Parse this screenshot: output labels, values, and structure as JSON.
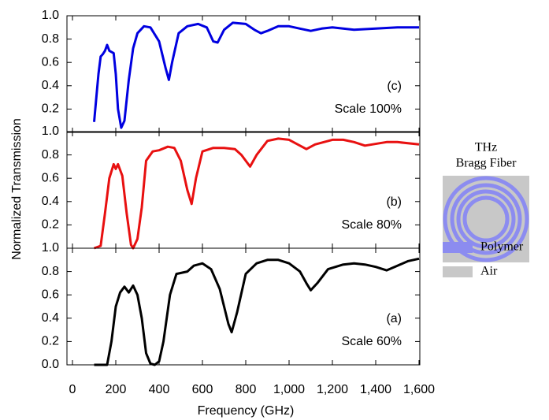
{
  "chart_data": {
    "type": "line",
    "xlabel": "Frequency (GHz)",
    "ylabel": "Normalized Transmission",
    "xlim": [
      0,
      1600
    ],
    "xticks": [
      0,
      200,
      400,
      600,
      800,
      {
        "value": 1000,
        "label": "1,000"
      },
      {
        "value": 1200,
        "label": "1,200"
      },
      {
        "value": 1400,
        "label": "1,400"
      },
      {
        "value": 1600,
        "label": "1,600"
      }
    ],
    "panels": [
      {
        "label": "(c)",
        "annotation": "Scale 100%",
        "color": "#0000e0",
        "ylim": [
          0,
          1
        ],
        "yticks": [
          {
            "value": 0.2,
            "label": "0.2"
          },
          {
            "value": 0.4,
            "label": "0.4"
          },
          {
            "value": 0.6,
            "label": "0.6"
          },
          {
            "value": 0.8,
            "label": "0.8"
          },
          {
            "value": 1,
            "label": "1.0"
          }
        ],
        "x": [
          100,
          110,
          120,
          130,
          140,
          150,
          160,
          170,
          180,
          190,
          200,
          210,
          225,
          240,
          260,
          280,
          300,
          330,
          360,
          400,
          430,
          445,
          460,
          490,
          530,
          580,
          620,
          650,
          670,
          700,
          740,
          800,
          840,
          870,
          900,
          950,
          1000,
          1050,
          1100,
          1150,
          1200,
          1300,
          1400,
          1500,
          1600
        ],
        "values": [
          0.09,
          0.3,
          0.5,
          0.65,
          0.67,
          0.7,
          0.75,
          0.7,
          0.69,
          0.68,
          0.5,
          0.2,
          0.04,
          0.1,
          0.45,
          0.72,
          0.85,
          0.91,
          0.9,
          0.78,
          0.55,
          0.45,
          0.6,
          0.85,
          0.91,
          0.93,
          0.9,
          0.78,
          0.77,
          0.88,
          0.94,
          0.93,
          0.88,
          0.85,
          0.87,
          0.91,
          0.91,
          0.89,
          0.87,
          0.89,
          0.9,
          0.88,
          0.89,
          0.9,
          0.9
        ]
      },
      {
        "label": "(b)",
        "annotation": "Scale 80%",
        "color": "#e81010",
        "ylim": [
          0,
          1
        ],
        "yticks": [
          {
            "value": 0.2,
            "label": "0.2"
          },
          {
            "value": 0.4,
            "label": "0.4"
          },
          {
            "value": 0.6,
            "label": "0.6"
          },
          {
            "value": 0.8,
            "label": "0.8"
          },
          {
            "value": 1,
            "label": "1.0"
          }
        ],
        "x": [
          100,
          130,
          150,
          170,
          190,
          200,
          210,
          230,
          250,
          270,
          280,
          300,
          320,
          340,
          370,
          400,
          440,
          470,
          500,
          530,
          550,
          570,
          600,
          650,
          700,
          750,
          780,
          820,
          850,
          900,
          950,
          1000,
          1050,
          1080,
          1120,
          1200,
          1250,
          1300,
          1350,
          1450,
          1500,
          1600
        ],
        "values": [
          0.0,
          0.02,
          0.3,
          0.6,
          0.72,
          0.68,
          0.72,
          0.62,
          0.3,
          0.03,
          0.0,
          0.08,
          0.35,
          0.75,
          0.83,
          0.84,
          0.87,
          0.86,
          0.75,
          0.5,
          0.38,
          0.6,
          0.83,
          0.86,
          0.86,
          0.85,
          0.8,
          0.7,
          0.8,
          0.92,
          0.94,
          0.93,
          0.88,
          0.85,
          0.89,
          0.93,
          0.93,
          0.91,
          0.88,
          0.91,
          0.91,
          0.89
        ]
      },
      {
        "label": "(a)",
        "annotation": "Scale 60%",
        "color": "#000000",
        "ylim": [
          0,
          1
        ],
        "yticks": [
          {
            "value": 0,
            "label": "0.0"
          },
          {
            "value": 0.2,
            "label": "0.2"
          },
          {
            "value": 0.4,
            "label": "0.4"
          },
          {
            "value": 0.6,
            "label": "0.6"
          },
          {
            "value": 0.8,
            "label": "0.8"
          },
          {
            "value": 1,
            "label": "1.0"
          }
        ],
        "x": [
          100,
          160,
          180,
          200,
          220,
          240,
          260,
          280,
          300,
          320,
          340,
          360,
          380,
          400,
          420,
          450,
          480,
          530,
          560,
          600,
          640,
          680,
          720,
          735,
          760,
          800,
          850,
          900,
          950,
          1000,
          1050,
          1080,
          1100,
          1130,
          1180,
          1250,
          1300,
          1350,
          1400,
          1450,
          1500,
          1550,
          1600
        ],
        "values": [
          0.0,
          0.0,
          0.2,
          0.5,
          0.62,
          0.67,
          0.62,
          0.68,
          0.6,
          0.4,
          0.1,
          0.01,
          0.0,
          0.03,
          0.2,
          0.6,
          0.78,
          0.8,
          0.85,
          0.87,
          0.82,
          0.65,
          0.35,
          0.28,
          0.45,
          0.78,
          0.87,
          0.9,
          0.9,
          0.87,
          0.8,
          0.7,
          0.64,
          0.7,
          0.82,
          0.86,
          0.87,
          0.86,
          0.84,
          0.81,
          0.85,
          0.89,
          0.91
        ]
      }
    ],
    "inset": {
      "title": [
        "THz",
        "Bragg Fiber"
      ],
      "legend": [
        {
          "name": "Polymer",
          "color": "#8c8cf0"
        },
        {
          "name": "Air",
          "color": "#c8c8c8"
        }
      ]
    }
  }
}
